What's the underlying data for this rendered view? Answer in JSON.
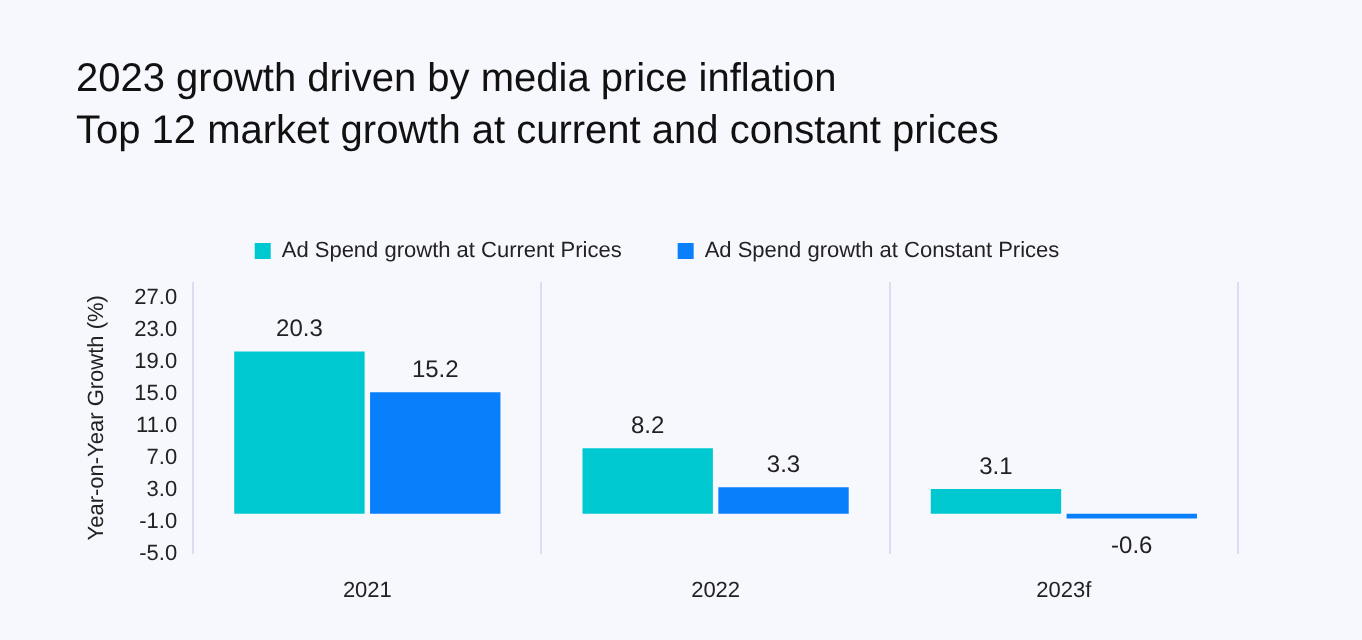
{
  "chart_data": {
    "type": "bar",
    "title": "2023 growth driven by media price inflation",
    "subtitle": "Top 12 market growth at current and constant prices",
    "ylabel": "Year-on-Year Growth (%)",
    "categories": [
      "2021",
      "2022",
      "2023f"
    ],
    "series": [
      {
        "name": "Ad Spend growth at Current Prices",
        "color": "#00c8d0",
        "values": [
          20.3,
          8.2,
          3.1
        ]
      },
      {
        "name": "Ad Spend growth at Constant Prices",
        "color": "#0a7ffc",
        "values": [
          15.2,
          3.3,
          -0.6
        ]
      }
    ],
    "ylim": [
      -5,
      29
    ],
    "yticks": [
      {
        "value": -5,
        "label": "-5.0"
      },
      {
        "value": -1,
        "label": "-1.0"
      },
      {
        "value": 3,
        "label": "3.0"
      },
      {
        "value": 7,
        "label": "7.0"
      },
      {
        "value": 11,
        "label": "11.0"
      },
      {
        "value": 15,
        "label": "15.0"
      },
      {
        "value": 19,
        "label": "19.0"
      },
      {
        "value": 23,
        "label": "23.0"
      },
      {
        "value": 27,
        "label": "27.0"
      }
    ],
    "grid": "x",
    "legend": "top",
    "data_labels": true
  }
}
